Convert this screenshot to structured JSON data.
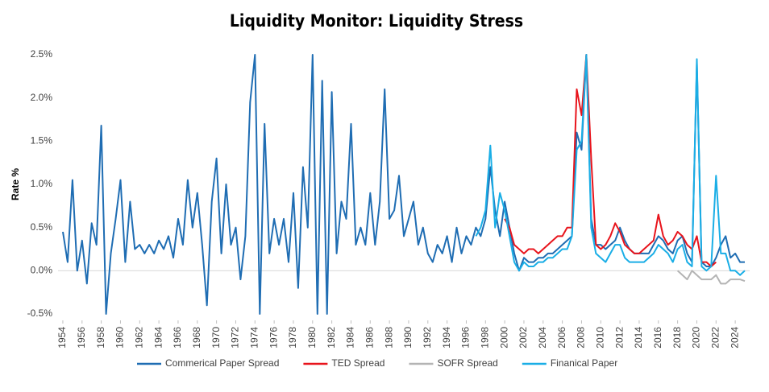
{
  "chart_data": {
    "type": "line",
    "title": "Liquidity Monitor: Liquidity Stress",
    "y_label": "Rate %",
    "xlim": [
      1953.5,
      2025.5
    ],
    "ylim": [
      -0.5,
      2.5
    ],
    "xticks": [
      1954,
      1956,
      1958,
      1960,
      1962,
      1964,
      1966,
      1968,
      1970,
      1972,
      1974,
      1976,
      1978,
      1980,
      1982,
      1984,
      1986,
      1988,
      1990,
      1992,
      1994,
      1996,
      1998,
      2000,
      2002,
      2004,
      2006,
      2008,
      2010,
      2012,
      2014,
      2016,
      2018,
      2020,
      2022,
      2024
    ],
    "yticks": [
      {
        "value": -0.5,
        "label": "-0.5%"
      },
      {
        "value": 0,
        "label": "0.0%"
      },
      {
        "value": 0.5,
        "label": "0.5%"
      },
      {
        "value": 1,
        "label": "1.0%"
      },
      {
        "value": 1.5,
        "label": "1.5%"
      },
      {
        "value": 2,
        "label": "2.0%"
      },
      {
        "value": 2.5,
        "label": "2.5%"
      }
    ],
    "grid": false,
    "legend": "bottom",
    "series": [
      {
        "name": "Commerical Paper Spread",
        "color": "#1f6db3",
        "x": [
          1954,
          1954.5,
          1955,
          1955.5,
          1956,
          1956.5,
          1957,
          1957.5,
          1958,
          1958.5,
          1959,
          1959.5,
          1960,
          1960.5,
          1961,
          1961.5,
          1962,
          1962.5,
          1963,
          1963.5,
          1964,
          1964.5,
          1965,
          1965.5,
          1966,
          1966.5,
          1967,
          1967.5,
          1968,
          1968.5,
          1969,
          1969.5,
          1970,
          1970.5,
          1971,
          1971.5,
          1972,
          1972.5,
          1973,
          1973.5,
          1974,
          1974.5,
          1975,
          1975.5,
          1976,
          1976.5,
          1977,
          1977.5,
          1978,
          1978.5,
          1979,
          1979.5,
          1980,
          1980.5,
          1981,
          1981.5,
          1982,
          1982.5,
          1983,
          1983.5,
          1984,
          1984.5,
          1985,
          1985.5,
          1986,
          1986.5,
          1987,
          1987.5,
          1988,
          1988.5,
          1989,
          1989.5,
          1990,
          1990.5,
          1991,
          1991.5,
          1992,
          1992.5,
          1993,
          1993.5,
          1994,
          1994.5,
          1995,
          1995.5,
          1996,
          1996.5,
          1997,
          1997.5,
          1998,
          1998.5,
          1999,
          1999.5,
          2000,
          2000.5,
          2001,
          2001.5,
          2002,
          2002.5,
          2003,
          2003.5,
          2004,
          2004.5,
          2005,
          2005.5,
          2006,
          2006.5,
          2007,
          2007.5,
          2008,
          2008.5,
          2009,
          2009.5,
          2010,
          2010.5,
          2011,
          2011.5,
          2012,
          2012.5,
          2013,
          2013.5,
          2014,
          2014.5,
          2015,
          2015.5,
          2016,
          2016.5,
          2017,
          2017.5,
          2018,
          2018.5,
          2019,
          2019.5,
          2020,
          2020.5,
          2021,
          2021.5,
          2022,
          2022.5,
          2023,
          2023.5,
          2024,
          2024.5,
          2025
        ],
        "values": [
          0.45,
          0.1,
          1.05,
          0.0,
          0.35,
          -0.15,
          0.55,
          0.3,
          1.68,
          -0.5,
          0.2,
          0.6,
          1.05,
          0.1,
          0.8,
          0.25,
          0.3,
          0.2,
          0.3,
          0.2,
          0.35,
          0.25,
          0.4,
          0.15,
          0.6,
          0.3,
          1.05,
          0.5,
          0.9,
          0.3,
          -0.4,
          0.8,
          1.3,
          0.2,
          1.0,
          0.3,
          0.5,
          -0.1,
          0.4,
          1.95,
          2.5,
          -0.5,
          1.7,
          0.2,
          0.6,
          0.3,
          0.6,
          0.1,
          0.9,
          -0.2,
          1.2,
          0.5,
          2.5,
          -0.5,
          2.2,
          -0.5,
          2.07,
          0.2,
          0.8,
          0.6,
          1.7,
          0.3,
          0.5,
          0.3,
          0.9,
          0.3,
          0.8,
          2.1,
          0.6,
          0.7,
          1.1,
          0.4,
          0.6,
          0.8,
          0.3,
          0.5,
          0.2,
          0.1,
          0.3,
          0.2,
          0.4,
          0.1,
          0.5,
          0.2,
          0.4,
          0.3,
          0.5,
          0.4,
          0.6,
          1.2,
          0.7,
          0.4,
          0.8,
          0.5,
          0.2,
          0.0,
          0.15,
          0.1,
          0.1,
          0.15,
          0.15,
          0.2,
          0.2,
          0.25,
          0.3,
          0.35,
          0.4,
          1.6,
          1.4,
          2.5,
          0.6,
          0.3,
          0.3,
          0.25,
          0.3,
          0.35,
          0.5,
          0.35,
          0.25,
          0.2,
          0.2,
          0.2,
          0.2,
          0.3,
          0.4,
          0.35,
          0.25,
          0.2,
          0.35,
          0.4,
          0.2,
          0.1,
          2.4,
          0.1,
          0.05,
          0.05,
          0.15,
          0.3,
          0.4,
          0.15,
          0.2,
          0.1,
          0.1
        ]
      },
      {
        "name": "TED Spread",
        "color": "#e8141c",
        "x": [
          2000,
          2000.5,
          2001,
          2001.5,
          2002,
          2002.5,
          2003,
          2003.5,
          2004,
          2004.5,
          2005,
          2005.5,
          2006,
          2006.5,
          2007,
          2007.5,
          2008,
          2008.5,
          2009,
          2009.5,
          2010,
          2010.5,
          2011,
          2011.5,
          2012,
          2012.5,
          2013,
          2013.5,
          2014,
          2014.5,
          2015,
          2015.5,
          2016,
          2016.5,
          2017,
          2017.5,
          2018,
          2018.5,
          2019,
          2019.5,
          2020,
          2020.5,
          2021,
          2021.5,
          2022
        ],
        "values": [
          0.6,
          0.5,
          0.3,
          0.25,
          0.2,
          0.25,
          0.25,
          0.2,
          0.25,
          0.3,
          0.35,
          0.4,
          0.4,
          0.5,
          0.5,
          2.1,
          1.8,
          2.5,
          1.3,
          0.3,
          0.25,
          0.3,
          0.4,
          0.55,
          0.45,
          0.3,
          0.25,
          0.2,
          0.2,
          0.25,
          0.3,
          0.35,
          0.65,
          0.4,
          0.3,
          0.35,
          0.45,
          0.4,
          0.3,
          0.25,
          0.4,
          0.1,
          0.1,
          0.05,
          0.1
        ]
      },
      {
        "name": "SOFR Spread",
        "color": "#b4b4b4",
        "x": [
          2018,
          2018.5,
          2019,
          2019.5,
          2020,
          2020.5,
          2021,
          2021.5,
          2022,
          2022.5,
          2023,
          2023.5,
          2024,
          2024.5,
          2025
        ],
        "values": [
          0.0,
          -0.05,
          -0.1,
          0.0,
          -0.05,
          -0.1,
          -0.1,
          -0.1,
          -0.05,
          -0.15,
          -0.15,
          -0.1,
          -0.1,
          -0.1,
          -0.12
        ]
      },
      {
        "name": "Finanical Paper",
        "color": "#1aaee6",
        "x": [
          1997,
          1997.5,
          1998,
          1998.5,
          1999,
          1999.5,
          2000,
          2000.5,
          2001,
          2001.5,
          2002,
          2002.5,
          2003,
          2003.5,
          2004,
          2004.5,
          2005,
          2005.5,
          2006,
          2006.5,
          2007,
          2007.5,
          2008,
          2008.5,
          2009,
          2009.5,
          2010,
          2010.5,
          2011,
          2011.5,
          2012,
          2012.5,
          2013,
          2013.5,
          2014,
          2014.5,
          2015,
          2015.5,
          2016,
          2016.5,
          2017,
          2017.5,
          2018,
          2018.5,
          2019,
          2019.5,
          2020,
          2020.5,
          2021,
          2021.5,
          2022,
          2022.5,
          2023,
          2023.5,
          2024,
          2024.5,
          2025
        ],
        "values": [
          0.4,
          0.5,
          0.7,
          1.45,
          0.5,
          0.9,
          0.7,
          0.4,
          0.1,
          0.0,
          0.1,
          0.05,
          0.05,
          0.1,
          0.1,
          0.15,
          0.15,
          0.2,
          0.25,
          0.25,
          0.4,
          1.4,
          1.5,
          2.5,
          0.5,
          0.2,
          0.15,
          0.1,
          0.2,
          0.3,
          0.3,
          0.15,
          0.1,
          0.1,
          0.1,
          0.1,
          0.15,
          0.2,
          0.3,
          0.25,
          0.2,
          0.1,
          0.25,
          0.3,
          0.1,
          0.05,
          2.45,
          0.05,
          0.0,
          0.05,
          1.1,
          0.2,
          0.2,
          0.0,
          0.0,
          -0.05,
          0.0
        ]
      }
    ]
  }
}
